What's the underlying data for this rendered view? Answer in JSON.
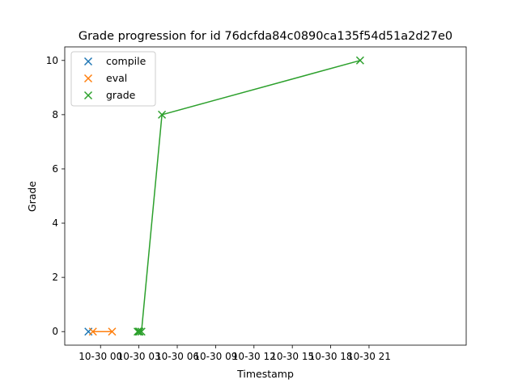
{
  "chart_data": {
    "type": "scatter",
    "title": "Grade progression for id 76dcfda84c0890ca135f54d51a2d27e0",
    "xlabel": "Timestamp",
    "ylabel": "Grade",
    "x_unit": "hours",
    "xlim": [
      -2.8,
      28.6
    ],
    "ylim": [
      -0.5,
      10.5
    ],
    "x_ticks": [
      {
        "value": 0,
        "label": "10-30 00"
      },
      {
        "value": 3,
        "label": "10-30 03"
      },
      {
        "value": 6,
        "label": "10-30 06"
      },
      {
        "value": 9,
        "label": "10-30 09"
      },
      {
        "value": 12,
        "label": "10-30 12"
      },
      {
        "value": 15,
        "label": "10-30 15"
      },
      {
        "value": 18,
        "label": "10-30 18"
      },
      {
        "value": 21,
        "label": "10-30 21"
      }
    ],
    "y_ticks": [
      0,
      2,
      4,
      6,
      8,
      10
    ],
    "grid": false,
    "legend_position": "top-left",
    "series": [
      {
        "name": "compile",
        "color": "#1f77b4",
        "marker": "x",
        "line": true,
        "points": [
          {
            "x": -0.95,
            "y": 0
          }
        ]
      },
      {
        "name": "eval",
        "color": "#ff7f0e",
        "marker": "x",
        "line": true,
        "points": [
          {
            "x": -0.6,
            "y": 0
          },
          {
            "x": 0.9,
            "y": 0
          }
        ]
      },
      {
        "name": "grade",
        "color": "#2ca02c",
        "marker": "x",
        "line": true,
        "points": [
          {
            "x": 2.9,
            "y": 0
          },
          {
            "x": 3.0,
            "y": 0
          },
          {
            "x": 3.05,
            "y": 0
          },
          {
            "x": 3.2,
            "y": 0
          },
          {
            "x": 4.8,
            "y": 8
          },
          {
            "x": 20.3,
            "y": 10
          }
        ]
      }
    ]
  }
}
